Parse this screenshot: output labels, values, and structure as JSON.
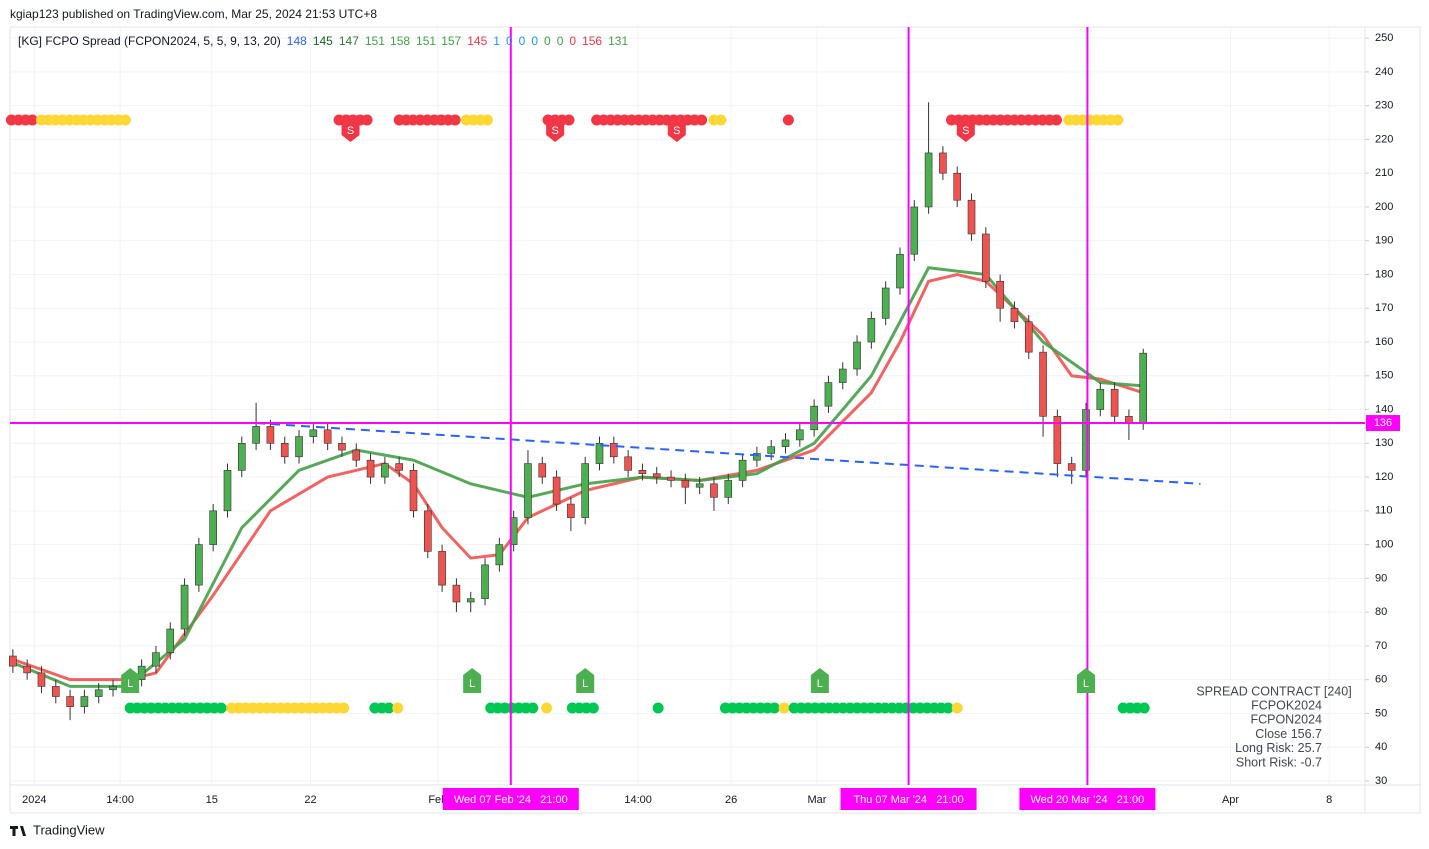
{
  "header": "kgiap123 published on TradingView.com, Mar 25, 2024 21:53 UTC+8",
  "footer": "TradingView",
  "chart_data": {
    "type": "candlestick",
    "title": "[KG] FCPO Spread (FCPON2024, 5, 5, 9, 13, 20)",
    "indicator_values": [
      {
        "value": 148,
        "color": "#2962ff"
      },
      {
        "value": 145,
        "color": "#1b5e20"
      },
      {
        "value": 147,
        "color": "#2e7d32"
      },
      {
        "value": 151,
        "color": "#43a047"
      },
      {
        "value": 158,
        "color": "#43a047"
      },
      {
        "value": 151,
        "color": "#43a047"
      },
      {
        "value": 157,
        "color": "#43a047"
      },
      {
        "value": 145,
        "color": "#f23645"
      },
      {
        "value": 1,
        "color": "#2196f3"
      },
      {
        "value": 0,
        "color": "#2196f3"
      },
      {
        "value": 0,
        "color": "#2196f3"
      },
      {
        "value": 0,
        "color": "#2196f3"
      },
      {
        "value": 0,
        "color": "#43a047"
      },
      {
        "value": 0,
        "color": "#43a047"
      },
      {
        "value": 0,
        "color": "#f23645"
      },
      {
        "value": 156,
        "color": "#f23645"
      },
      {
        "value": 131,
        "color": "#43a047"
      }
    ],
    "open": [
      67,
      64,
      62,
      58,
      55,
      52,
      55,
      57,
      58,
      60,
      64,
      68,
      75,
      88,
      100,
      110,
      122,
      130,
      135,
      130,
      126,
      132,
      134,
      130,
      128,
      125,
      120,
      124,
      122,
      110,
      98,
      88,
      83,
      84,
      94,
      100,
      108,
      124,
      120,
      112,
      108,
      124,
      130,
      126,
      122,
      121,
      120,
      119,
      117,
      118,
      114,
      119,
      125,
      127,
      129,
      131,
      134,
      141,
      148,
      152,
      160,
      167,
      176,
      186,
      200,
      216,
      210,
      202,
      192,
      178,
      170,
      166,
      157,
      138,
      124,
      122,
      140,
      146,
      138,
      136
    ],
    "high": [
      69,
      66,
      64,
      60,
      57,
      57,
      59,
      60,
      62,
      66,
      70,
      77,
      90,
      102,
      112,
      124,
      132,
      142,
      137,
      132,
      134,
      136,
      136,
      132,
      130,
      127,
      126,
      126,
      124,
      112,
      100,
      90,
      86,
      96,
      102,
      110,
      128,
      126,
      122,
      114,
      126,
      132,
      132,
      128,
      124,
      123,
      122,
      121,
      120,
      120,
      121,
      127,
      129,
      131,
      133,
      136,
      143,
      150,
      154,
      162,
      169,
      178,
      188,
      202,
      231,
      218,
      212,
      204,
      194,
      180,
      172,
      168,
      159,
      140,
      126,
      142,
      148,
      148,
      140,
      158
    ],
    "low": [
      62,
      60,
      56,
      53,
      48,
      50,
      53,
      55,
      56,
      58,
      62,
      66,
      73,
      86,
      98,
      108,
      120,
      128,
      128,
      124,
      124,
      130,
      128,
      126,
      123,
      118,
      118,
      120,
      108,
      96,
      86,
      80,
      80,
      82,
      92,
      98,
      106,
      118,
      110,
      104,
      106,
      122,
      124,
      120,
      119,
      118,
      117,
      112,
      115,
      110,
      112,
      117,
      123,
      125,
      127,
      129,
      132,
      139,
      146,
      150,
      158,
      165,
      174,
      184,
      198,
      208,
      200,
      190,
      176,
      166,
      164,
      155,
      132,
      120,
      118,
      120,
      138,
      136,
      131,
      134
    ],
    "close": [
      64,
      62,
      58,
      55,
      52,
      55,
      57,
      58,
      60,
      64,
      68,
      75,
      88,
      100,
      110,
      122,
      130,
      135,
      130,
      126,
      132,
      134,
      130,
      128,
      125,
      120,
      124,
      122,
      110,
      98,
      88,
      83,
      84,
      94,
      100,
      108,
      124,
      120,
      112,
      108,
      124,
      130,
      126,
      122,
      121,
      120,
      119,
      117,
      118,
      114,
      119,
      125,
      127,
      129,
      131,
      134,
      141,
      148,
      152,
      160,
      167,
      176,
      186,
      200,
      216,
      210,
      202,
      192,
      178,
      170,
      166,
      157,
      138,
      124,
      122,
      140,
      146,
      138,
      136,
      156.7
    ],
    "up_color": "#4caf50",
    "down_color": "#ef5350",
    "xlim": [
      -0.2,
      94.5
    ],
    "xticks": [
      {
        "value": 1.5,
        "label": "2024"
      },
      {
        "value": 7.5,
        "label": "14:00"
      },
      {
        "value": 13.9,
        "label": "15"
      },
      {
        "value": 20.8,
        "label": "22"
      },
      {
        "value": 29.7,
        "label": "Feb"
      },
      {
        "value": 43.7,
        "label": "14:00"
      },
      {
        "value": 50.2,
        "label": "26"
      },
      {
        "value": 56.2,
        "label": "Mar"
      },
      {
        "value": 85.1,
        "label": "Apr"
      },
      {
        "value": 92,
        "label": "8"
      }
    ],
    "ylim": [
      28.8,
      253.3
    ],
    "yticks": [
      30,
      40,
      50,
      60,
      70,
      80,
      90,
      100,
      110,
      120,
      130,
      140,
      150,
      160,
      170,
      180,
      190,
      200,
      210,
      220,
      230,
      240,
      250
    ],
    "grid": true,
    "lines": [
      {
        "color": "#ef5350",
        "width": 3,
        "x": [
          0,
          4,
          8,
          10,
          14,
          18,
          22,
          26,
          28,
          30,
          32,
          34,
          36,
          40,
          44,
          48,
          52,
          56,
          60,
          62,
          64,
          66,
          68,
          70,
          72,
          74,
          76,
          79
        ],
        "values": [
          66,
          60,
          60,
          62,
          85,
          110,
          120,
          124,
          118,
          105,
          96,
          97,
          108,
          116,
          120,
          119,
          122,
          128,
          145,
          160,
          178,
          180,
          178,
          170,
          162,
          150,
          149,
          145
        ]
      },
      {
        "color": "#43a047",
        "width": 3,
        "x": [
          0,
          4,
          8,
          12,
          16,
          20,
          24,
          28,
          32,
          36,
          40,
          44,
          48,
          52,
          56,
          60,
          64,
          68,
          72,
          76,
          79
        ],
        "values": [
          65,
          58,
          58,
          72,
          105,
          122,
          128,
          125,
          118,
          114,
          118,
          120,
          119,
          121,
          130,
          150,
          182,
          180,
          160,
          148,
          147
        ]
      }
    ],
    "trend_line": {
      "color": "#2962ff",
      "x": [
        17,
        83
      ],
      "values": [
        136,
        118
      ]
    },
    "hline": 136,
    "marker_color": "#ff00ff",
    "vlines": [
      {
        "x": 34.8,
        "label": "Wed 07 Feb '24   21:00"
      },
      {
        "x": 62.6,
        "label": "Thu 07 Mar '24   21:00"
      },
      {
        "x": 75.1,
        "label": "Wed 20 Mar '24   21:00"
      }
    ],
    "sell_signals": {
      "label": "S",
      "color": "#f23645",
      "x": [
        23.6,
        37.9,
        46.4,
        66.6
      ]
    },
    "buy_signals": {
      "label": "L",
      "color": "#4caf50",
      "x": [
        8.2,
        32.1,
        40,
        56.4,
        75
      ]
    },
    "signal_dots": {
      "top": [
        {
          "from": -0.1,
          "to": 1.5,
          "color": "#f23645"
        },
        {
          "from": 2,
          "to": 8.2,
          "color": "#fdd835"
        },
        {
          "from": 22.8,
          "to": 25,
          "color": "#f23645"
        },
        {
          "from": 27,
          "to": 31.2,
          "color": "#f23645"
        },
        {
          "from": 31.7,
          "to": 33.5,
          "color": "#fdd835"
        },
        {
          "from": 37.4,
          "to": 38.9,
          "color": "#f23645"
        },
        {
          "from": 40.8,
          "to": 48.5,
          "color": "#f23645"
        },
        {
          "from": 49,
          "to": 49.8,
          "color": "#fdd835"
        },
        {
          "from": 54.2,
          "to": 54.2,
          "color": "#f23645"
        },
        {
          "from": 65.6,
          "to": 73.3,
          "color": "#f23645"
        },
        {
          "from": 73.8,
          "to": 77.6,
          "color": "#fdd835"
        }
      ],
      "bottom": [
        {
          "from": 8.2,
          "to": 14.8,
          "color": "#00c853"
        },
        {
          "from": 15.3,
          "to": 23.4,
          "color": "#fdd835"
        },
        {
          "from": 25.3,
          "to": 26.4,
          "color": "#00c853"
        },
        {
          "from": 26.9,
          "to": 27.2,
          "color": "#fdd835"
        },
        {
          "from": 33.4,
          "to": 36.8,
          "color": "#00c853"
        },
        {
          "from": 37.3,
          "to": 37.3,
          "color": "#fdd835"
        },
        {
          "from": 39.1,
          "to": 40.8,
          "color": "#00c853"
        },
        {
          "from": 45.1,
          "to": 45.1,
          "color": "#00c853"
        },
        {
          "from": 49.8,
          "to": 53.4,
          "color": "#00c853"
        },
        {
          "from": 53.9,
          "to": 53.9,
          "color": "#fdd835"
        },
        {
          "from": 54.6,
          "to": 65.5,
          "color": "#00c853"
        },
        {
          "from": 66,
          "to": 66.2,
          "color": "#fdd835"
        },
        {
          "from": 77.6,
          "to": 79.4,
          "color": "#00c853"
        }
      ]
    },
    "info_box": [
      "SPREAD CONTRACT [240]",
      "FCPOK2024",
      "FCPON2024",
      "Close 156.7",
      "Long Risk: 25.7",
      "Short Risk: -0.7"
    ]
  }
}
